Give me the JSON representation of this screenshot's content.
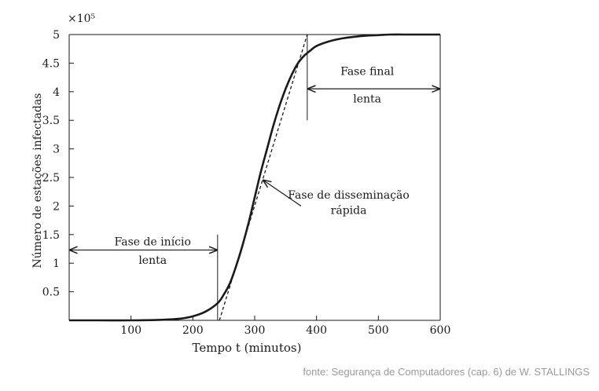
{
  "chart_data": {
    "type": "line",
    "xlabel": "Tempo t (minutos)",
    "ylabel": "Número de estações infectadas",
    "y_multiplier": "×10⁵",
    "xlim": [
      0,
      600
    ],
    "ylim": [
      0,
      5
    ],
    "x_ticks": [
      100,
      200,
      300,
      400,
      500,
      600
    ],
    "y_ticks": [
      0.5,
      1,
      1.5,
      2,
      2.5,
      3,
      3.5,
      4,
      4.5,
      5
    ],
    "grid": false,
    "series": [
      {
        "style": "solid",
        "x": [
          0,
          50,
          100,
          150,
          180,
          200,
          220,
          240,
          250,
          260,
          270,
          280,
          290,
          300,
          310,
          320,
          330,
          340,
          350,
          360,
          370,
          380,
          390,
          400,
          420,
          440,
          460,
          480,
          500,
          520,
          540,
          560,
          580,
          600
        ],
        "y": [
          0.0,
          0.0,
          0.0,
          0.01,
          0.03,
          0.07,
          0.15,
          0.3,
          0.45,
          0.65,
          0.95,
          1.3,
          1.7,
          2.15,
          2.6,
          3.0,
          3.4,
          3.75,
          4.05,
          4.3,
          4.5,
          4.63,
          4.72,
          4.8,
          4.88,
          4.93,
          4.96,
          4.98,
          4.99,
          5.0,
          5.0,
          5.0,
          5.0,
          5.0
        ]
      },
      {
        "style": "dashed",
        "x": [
          243,
          385
        ],
        "y": [
          0.0,
          5.0
        ]
      }
    ],
    "annotations": [
      {
        "text_lines": [
          "Fase de início",
          "lenta"
        ],
        "x_from": 0,
        "x_to": 240,
        "y": 1.23,
        "text_x": 135,
        "line1_y": 1.38,
        "line2_y": 1.06
      },
      {
        "text_lines": [
          "Fase de disseminação",
          "rápida"
        ],
        "text_x": 452,
        "line1_y": 2.2,
        "line2_y": 1.93,
        "arrow_from": [
          375,
          2.0
        ],
        "arrow_to": [
          314,
          2.45
        ]
      },
      {
        "text_lines": [
          "Fase final",
          "lenta"
        ],
        "x_from": 385,
        "x_to": 600,
        "y": 4.05,
        "text_x": 482,
        "line1_y": 4.36,
        "line2_y": 3.88
      }
    ],
    "vlines": [
      {
        "x": 240,
        "y_from": 0,
        "y_to": 1.5
      },
      {
        "x": 385,
        "y_from": 3.5,
        "y_to": 5.0
      }
    ]
  },
  "footer": {
    "source_text": "fonte: Segurança de Computadores (cap. 6) de W. STALLINGS"
  }
}
